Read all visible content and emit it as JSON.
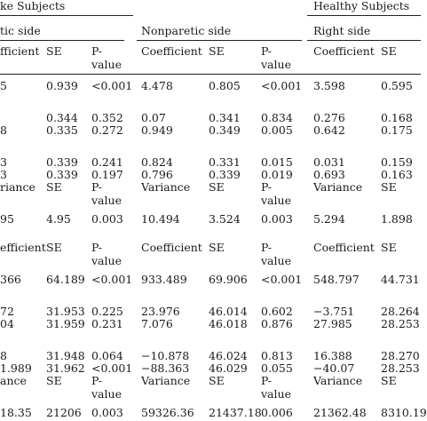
{
  "header": {
    "stroke_group": "ke Subjects",
    "healthy_group": "Healthy Subjects",
    "sides": {
      "paretic": "tic side",
      "nonparetic": "Nonparetic side",
      "right": "Right side"
    }
  },
  "col_headers": {
    "coef_partial": "fficient",
    "coef": "Coefficient",
    "se": "SE",
    "pvalue_l1": "P-",
    "pvalue_l2": "value"
  },
  "section1": {
    "rows": [
      {
        "c0": "5",
        "c1": "0.939",
        "c2": "<0.001",
        "c3": "4.478",
        "c4": "0.805",
        "c5": "<0.001",
        "c6": "3.598",
        "c7": "0.595"
      },
      {
        "c0": "",
        "c1": "0.344",
        "c2": "0.352",
        "c3": "0.07",
        "c4": "0.341",
        "c5": "0.834",
        "c6": "0.276",
        "c7": "0.168"
      },
      {
        "c0": "8",
        "c1": "0.335",
        "c2": "0.272",
        "c3": "0.949",
        "c4": "0.349",
        "c5": "0.005",
        "c6": "0.642",
        "c7": "0.175"
      },
      {
        "c0": "3",
        "c1": "0.339",
        "c2": "0.241",
        "c3": "0.824",
        "c4": "0.331",
        "c5": "0.015",
        "c6": "0.031",
        "c7": "0.159"
      },
      {
        "c0": "3",
        "c1": "0.339",
        "c2": "0.197",
        "c3": "0.796",
        "c4": "0.339",
        "c5": "0.019",
        "c6": "0.693",
        "c7": "0.163"
      }
    ],
    "var_header": {
      "c0": "riance",
      "c3": "Variance",
      "c6": "Variance"
    },
    "var_row": {
      "c0": "95",
      "c1": "4.95",
      "c2": "0.003",
      "c3": "10.494",
      "c4": "3.524",
      "c5": "0.003",
      "c6": "5.294",
      "c7": "1.898"
    }
  },
  "section2": {
    "header": {
      "c0": "efficient"
    },
    "rows": [
      {
        "c0": "366",
        "c1": "64.189",
        "c2": "<0.001",
        "c3": "933.489",
        "c4": "69.906",
        "c5": "<0.001",
        "c6": "548.797",
        "c7": "44.731"
      },
      {
        "c0": "72",
        "c1": "31.953",
        "c2": "0.225",
        "c3": "23.976",
        "c4": "46.014",
        "c5": "0.602",
        "c6": "−3.751",
        "c7": "28.264"
      },
      {
        "c0": "04",
        "c1": "31.959",
        "c2": "0.231",
        "c3": "7.076",
        "c4": "46.018",
        "c5": "0.876",
        "c6": "27.985",
        "c7": "28.253"
      },
      {
        "c0": "8",
        "c1": "31.948",
        "c2": "0.064",
        "c3": "−10.878",
        "c4": "46.024",
        "c5": "0.813",
        "c6": "16.388",
        "c7": "28.270"
      },
      {
        "c0": "1.989",
        "c1": "31.962",
        "c2": "<0.001",
        "c3": "−88.363",
        "c4": "46.029",
        "c5": "0.055",
        "c6": "−40.07",
        "c7": "28.253"
      }
    ],
    "var_header": {
      "c0": "ance",
      "c3": "Variance",
      "c6": "Variance"
    },
    "var_row": {
      "c0": "18.35",
      "c1": "21206",
      "c2": "0.003",
      "c3": "59326.36",
      "c4": "21437.18",
      "c5": "0.006",
      "c6": "21362.48",
      "c7": "8310.19"
    }
  }
}
